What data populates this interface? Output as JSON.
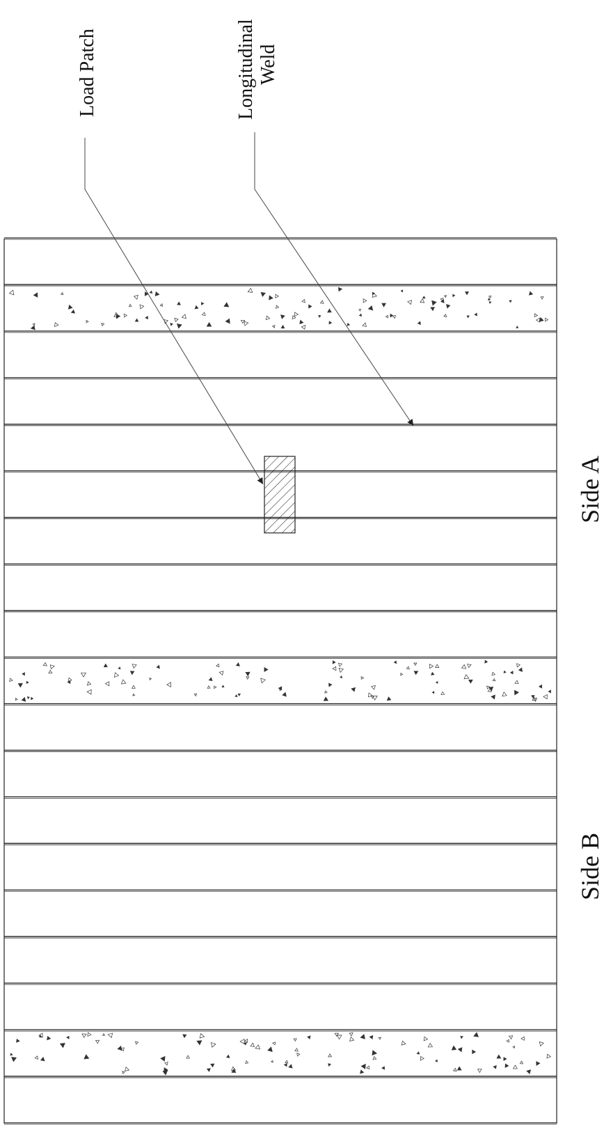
{
  "labels": {
    "load_patch": "Load Patch",
    "weld_line1": "Longitudinal",
    "weld_line2": "Weld",
    "side_a": "Side A",
    "side_b": "Side B"
  },
  "colors": {
    "line": "#222222",
    "stipple": "#333333",
    "leader": "#444444"
  },
  "deck": {
    "strip_count": 19,
    "concrete_strips": [
      1,
      9,
      17
    ]
  }
}
